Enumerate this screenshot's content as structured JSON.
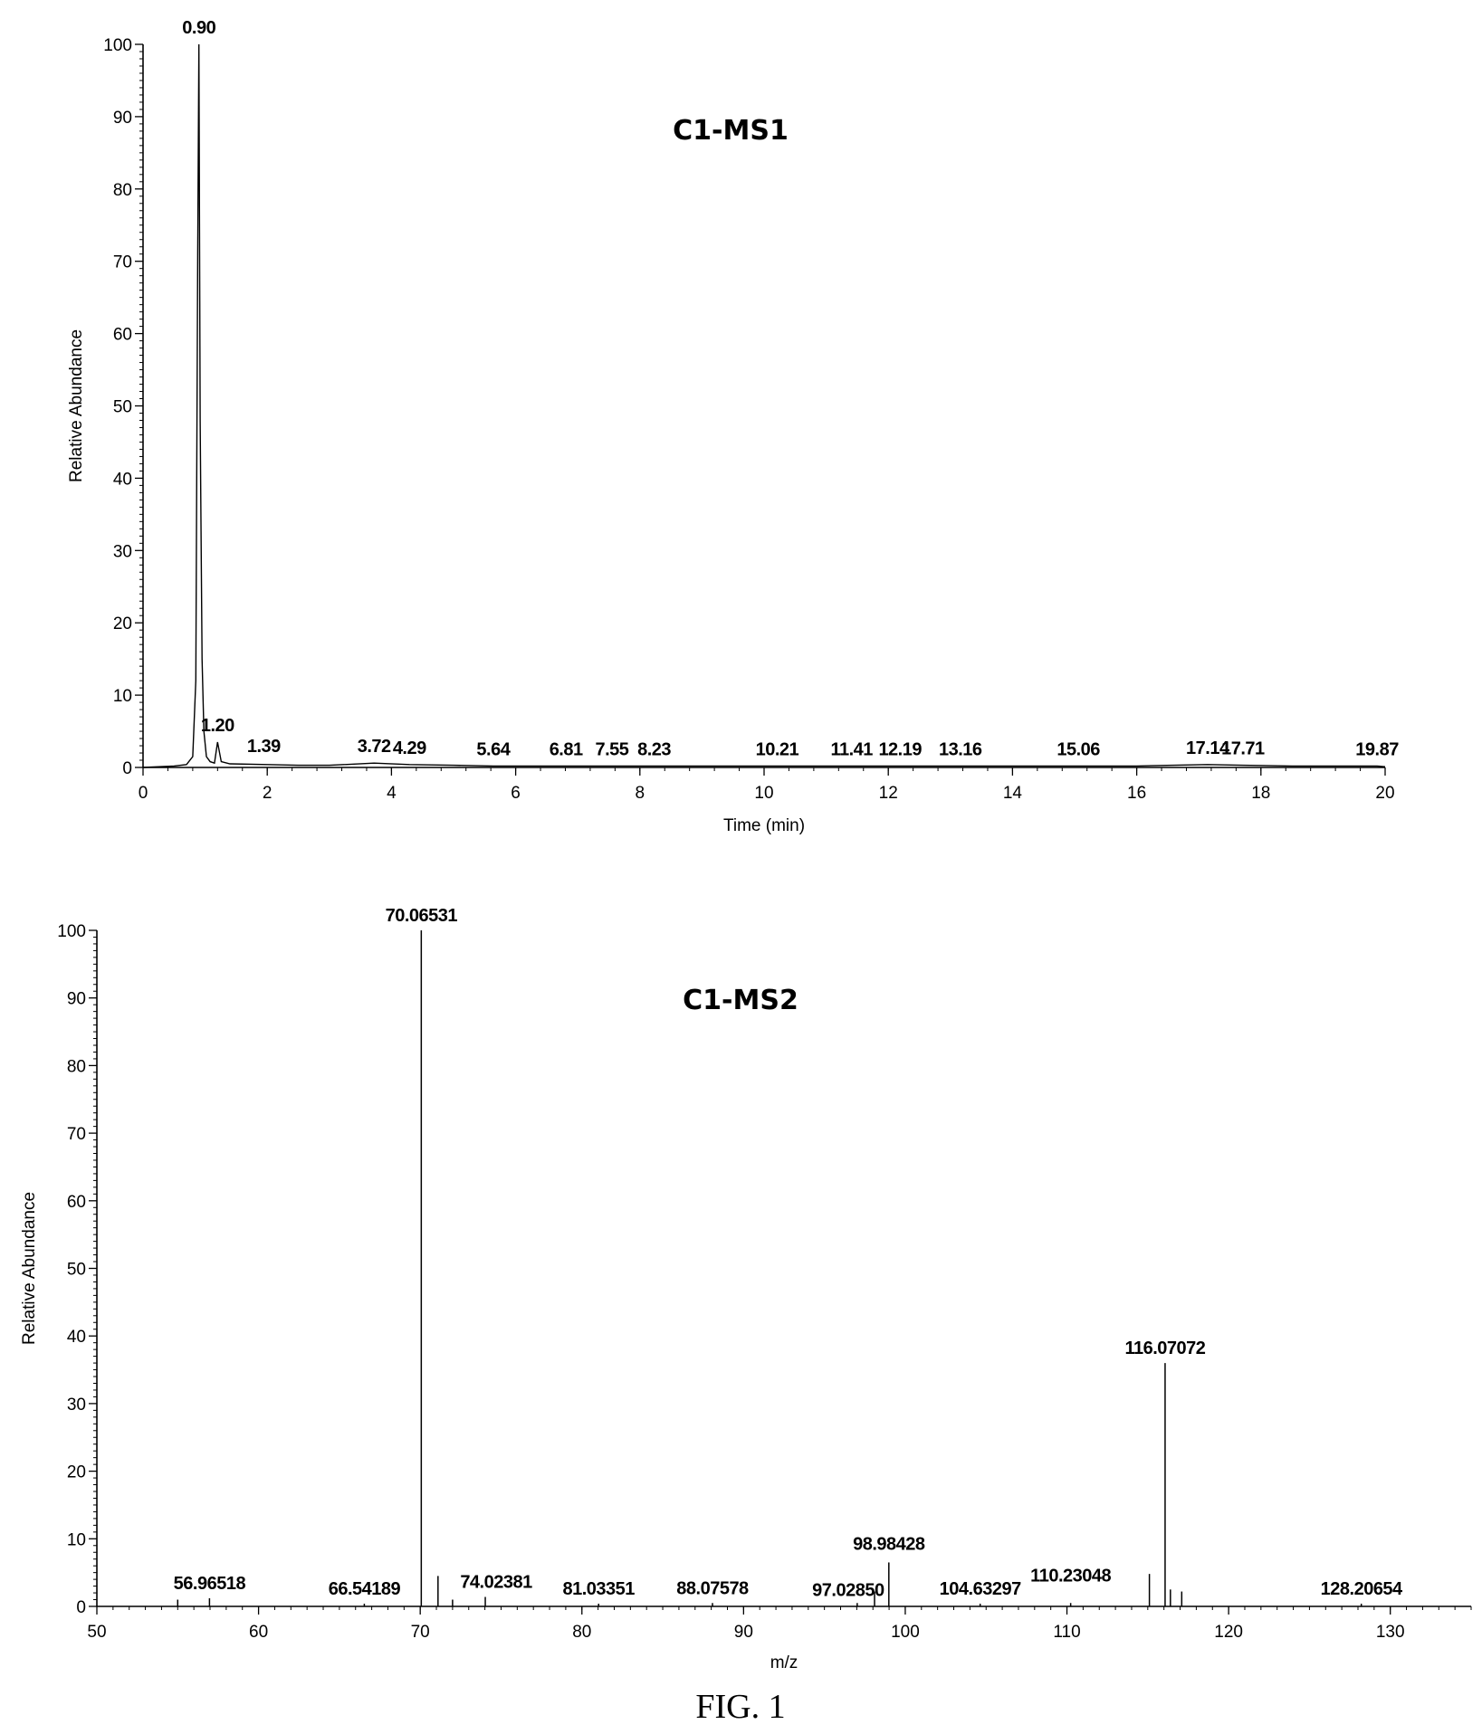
{
  "caption": "FIG. 1",
  "chart_data": [
    {
      "type": "line",
      "title": "C1-MS1",
      "xlabel": "Time (min)",
      "ylabel": "Relative Abundance",
      "xlim": [
        0,
        20
      ],
      "ylim": [
        0,
        100
      ],
      "x_ticks": [
        0,
        2,
        4,
        6,
        8,
        10,
        12,
        14,
        16,
        18,
        20
      ],
      "y_ticks": [
        0,
        10,
        20,
        30,
        40,
        50,
        60,
        70,
        80,
        90,
        100
      ],
      "x": [
        0,
        0.5,
        0.7,
        0.8,
        0.85,
        0.88,
        0.9,
        0.92,
        0.95,
        0.98,
        1.02,
        1.08,
        1.15,
        1.2,
        1.26,
        1.4,
        2.0,
        2.5,
        3.0,
        3.72,
        4.29,
        5.0,
        5.64,
        6.81,
        7.55,
        8.23,
        9.0,
        10.21,
        11.41,
        12.19,
        13.16,
        14.0,
        15.06,
        16.0,
        17.14,
        17.71,
        18.5,
        19.87,
        20
      ],
      "y": [
        0,
        0.2,
        0.4,
        1.5,
        12,
        71,
        100,
        48,
        15,
        5,
        1.5,
        0.8,
        0.6,
        3.5,
        0.8,
        0.5,
        0.4,
        0.3,
        0.3,
        0.6,
        0.4,
        0.3,
        0.2,
        0.2,
        0.2,
        0.2,
        0.2,
        0.2,
        0.2,
        0.2,
        0.2,
        0.2,
        0.2,
        0.2,
        0.4,
        0.3,
        0.2,
        0.2,
        0.1
      ],
      "peak_labels": [
        {
          "x": 0.9,
          "y": 100,
          "text": "0.90"
        },
        {
          "x": 1.2,
          "y": 3.5,
          "text": "1.20"
        },
        {
          "x": 1.39,
          "y": 0.6,
          "text": "1.39"
        },
        {
          "x": 3.72,
          "y": 0.6,
          "text": "3.72"
        },
        {
          "x": 4.29,
          "y": 0.4,
          "text": "4.29"
        },
        {
          "x": 5.64,
          "y": 0.2,
          "text": "5.64"
        },
        {
          "x": 6.81,
          "y": 0.2,
          "text": "6.81"
        },
        {
          "x": 7.55,
          "y": 0.2,
          "text": "7.55"
        },
        {
          "x": 8.23,
          "y": 0.2,
          "text": "8.23"
        },
        {
          "x": 10.21,
          "y": 0.2,
          "text": "10.21"
        },
        {
          "x": 11.41,
          "y": 0.2,
          "text": "11.41"
        },
        {
          "x": 12.19,
          "y": 0.2,
          "text": "12.19"
        },
        {
          "x": 13.16,
          "y": 0.2,
          "text": "13.16"
        },
        {
          "x": 15.06,
          "y": 0.2,
          "text": "15.06"
        },
        {
          "x": 17.14,
          "y": 0.4,
          "text": "17.14"
        },
        {
          "x": 17.71,
          "y": 0.3,
          "text": "17.71"
        },
        {
          "x": 19.87,
          "y": 0.2,
          "text": "19.87"
        }
      ]
    },
    {
      "type": "bar",
      "title": "C1-MS2",
      "xlabel": "m/z",
      "ylabel": "Relative Abundance",
      "xlim": [
        50,
        135
      ],
      "ylim": [
        0,
        100
      ],
      "x_ticks": [
        50,
        60,
        70,
        80,
        90,
        100,
        110,
        120,
        130
      ],
      "y_ticks": [
        0,
        10,
        20,
        30,
        40,
        50,
        60,
        70,
        80,
        90,
        100
      ],
      "peaks": [
        {
          "mz": 55.0,
          "intensity": 1.0
        },
        {
          "mz": 56.96518,
          "intensity": 1.2,
          "label": "56.96518"
        },
        {
          "mz": 66.54189,
          "intensity": 0.4,
          "label": "66.54189"
        },
        {
          "mz": 70.06531,
          "intensity": 100,
          "label": "70.06531"
        },
        {
          "mz": 71.1,
          "intensity": 4.5
        },
        {
          "mz": 72.0,
          "intensity": 1.0
        },
        {
          "mz": 74.02381,
          "intensity": 1.4,
          "label": "74.02381"
        },
        {
          "mz": 81.03351,
          "intensity": 0.4,
          "label": "81.03351"
        },
        {
          "mz": 88.07578,
          "intensity": 0.5,
          "label": "88.07578"
        },
        {
          "mz": 97.0285,
          "intensity": 0.5,
          "label": "97.02850"
        },
        {
          "mz": 98.1,
          "intensity": 2.2
        },
        {
          "mz": 98.98428,
          "intensity": 6.5,
          "label": "98.98428"
        },
        {
          "mz": 104.63297,
          "intensity": 0.4,
          "label": "104.63297"
        },
        {
          "mz": 110.23048,
          "intensity": 0.5,
          "label": "110.23048"
        },
        {
          "mz": 115.1,
          "intensity": 4.8
        },
        {
          "mz": 116.07072,
          "intensity": 36,
          "label": "116.07072"
        },
        {
          "mz": 116.4,
          "intensity": 2.5
        },
        {
          "mz": 117.1,
          "intensity": 2.2
        },
        {
          "mz": 128.20654,
          "intensity": 0.4,
          "label": "128.20654"
        }
      ]
    }
  ]
}
